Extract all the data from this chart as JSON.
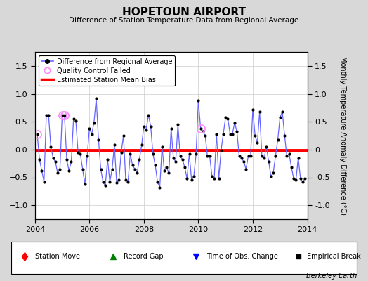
{
  "title": "HOPETOUN AIRPORT",
  "subtitle": "Difference of Station Temperature Data from Regional Average",
  "ylabel_right": "Monthly Temperature Anomaly Difference (°C)",
  "xlim": [
    2004.0,
    2014.0
  ],
  "ylim": [
    -1.25,
    1.75
  ],
  "yticks": [
    -1.0,
    -0.5,
    0.0,
    0.5,
    1.0,
    1.5
  ],
  "xticks": [
    2004,
    2006,
    2008,
    2010,
    2012,
    2014
  ],
  "bias": -0.02,
  "line_color": "#6666ff",
  "bias_color": "#ff0000",
  "qc_color": "#ff88ff",
  "bg_color": "#d8d8d8",
  "plot_bg": "#ffffff",
  "berkeley_earth_text": "Berkeley Earth",
  "time": [
    2004.083,
    2004.167,
    2004.25,
    2004.333,
    2004.417,
    2004.5,
    2004.583,
    2004.667,
    2004.75,
    2004.833,
    2004.917,
    2005.0,
    2005.083,
    2005.167,
    2005.25,
    2005.333,
    2005.417,
    2005.5,
    2005.583,
    2005.667,
    2005.75,
    2005.833,
    2005.917,
    2006.0,
    2006.083,
    2006.167,
    2006.25,
    2006.333,
    2006.417,
    2006.5,
    2006.583,
    2006.667,
    2006.75,
    2006.833,
    2006.917,
    2007.0,
    2007.083,
    2007.167,
    2007.25,
    2007.333,
    2007.417,
    2007.5,
    2007.583,
    2007.667,
    2007.75,
    2007.833,
    2007.917,
    2008.0,
    2008.083,
    2008.167,
    2008.25,
    2008.333,
    2008.417,
    2008.5,
    2008.583,
    2008.667,
    2008.75,
    2008.833,
    2008.917,
    2009.0,
    2009.083,
    2009.167,
    2009.25,
    2009.333,
    2009.417,
    2009.5,
    2009.583,
    2009.667,
    2009.75,
    2009.833,
    2009.917,
    2010.0,
    2010.083,
    2010.167,
    2010.25,
    2010.333,
    2010.417,
    2010.5,
    2010.583,
    2010.667,
    2010.75,
    2010.833,
    2010.917,
    2011.0,
    2011.083,
    2011.167,
    2011.25,
    2011.333,
    2011.417,
    2011.5,
    2011.583,
    2011.667,
    2011.75,
    2011.833,
    2011.917,
    2012.0,
    2012.083,
    2012.167,
    2012.25,
    2012.333,
    2012.417,
    2012.5,
    2012.583,
    2012.667,
    2012.75,
    2012.833,
    2012.917,
    2013.0,
    2013.083,
    2013.167,
    2013.25,
    2013.333,
    2013.417,
    2013.5,
    2013.583,
    2013.667,
    2013.75,
    2013.833,
    2013.917
  ],
  "values": [
    0.28,
    -0.18,
    -0.38,
    -0.58,
    0.62,
    0.62,
    0.05,
    -0.15,
    -0.22,
    -0.42,
    -0.35,
    0.62,
    0.62,
    -0.18,
    -0.38,
    -0.22,
    0.55,
    0.52,
    -0.05,
    -0.08,
    -0.35,
    -0.62,
    -0.12,
    0.38,
    0.28,
    0.48,
    0.92,
    0.18,
    -0.35,
    -0.58,
    -0.65,
    -0.18,
    -0.58,
    -0.35,
    0.08,
    -0.6,
    -0.55,
    -0.05,
    0.25,
    -0.55,
    -0.58,
    -0.08,
    -0.28,
    -0.35,
    -0.42,
    -0.18,
    0.08,
    0.42,
    0.35,
    0.62,
    0.42,
    -0.08,
    -0.28,
    -0.58,
    -0.68,
    0.05,
    -0.38,
    -0.32,
    -0.42,
    0.38,
    -0.15,
    -0.22,
    0.45,
    -0.12,
    -0.18,
    -0.32,
    -0.52,
    -0.08,
    -0.55,
    -0.48,
    -0.08,
    0.88,
    0.38,
    0.32,
    0.25,
    -0.12,
    -0.12,
    -0.48,
    -0.52,
    0.28,
    -0.52,
    -0.02,
    0.28,
    0.58,
    0.55,
    0.28,
    0.28,
    0.48,
    0.32,
    -0.12,
    -0.15,
    -0.22,
    -0.35,
    -0.12,
    -0.12,
    0.72,
    0.25,
    0.12,
    0.68,
    -0.12,
    -0.15,
    0.05,
    -0.22,
    -0.48,
    -0.42,
    -0.12,
    0.18,
    0.58,
    0.68,
    0.25,
    -0.12,
    -0.08,
    -0.32,
    -0.52,
    -0.55,
    -0.15,
    -0.52,
    -0.58,
    -0.52
  ],
  "qc_failed_indices": [
    0,
    11,
    12,
    72
  ]
}
